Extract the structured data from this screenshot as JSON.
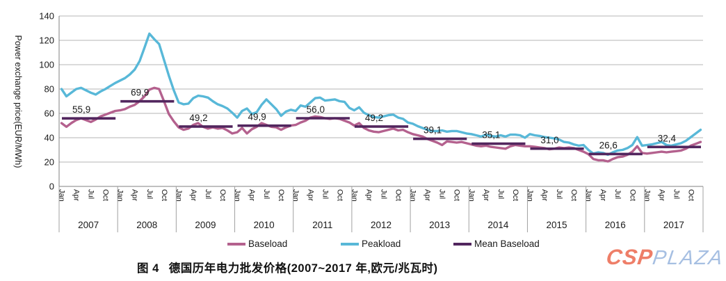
{
  "caption": {
    "figure_label": "图 4",
    "title": "德国历年电力批发价格(2007~2017 年,欧元/兆瓦时)"
  },
  "logo": {
    "csp_text": "CSP",
    "plaza_text": "PLAZA",
    "csp_color": "#ee7e68",
    "plaza_color": "#a6bfe2"
  },
  "colors": {
    "baseload": "#b4618e",
    "peakload": "#58b8d8",
    "mean_baseload": "#52265e",
    "gridline": "#b5b5b5",
    "axis": "#808080",
    "separator": "#a0a0a0"
  },
  "chart_data": {
    "type": "line",
    "ylabel": "Power exchange price(EUR/MWh)",
    "ylim": [
      0,
      140
    ],
    "y_ticks": [
      0,
      20,
      40,
      60,
      80,
      100,
      120,
      140
    ],
    "grid": "horizontal",
    "legend_position": "bottom",
    "years": [
      2007,
      2008,
      2009,
      2010,
      2011,
      2012,
      2013,
      2014,
      2015,
      2016,
      2017
    ],
    "month_tick_labels": [
      "Jan",
      "Apr",
      "Jul",
      "Oct"
    ],
    "month_tick_indices": [
      0,
      3,
      6,
      9
    ],
    "series": [
      {
        "name": "Baseload",
        "color": "#b4618e",
        "monthly_values": [
          52,
          49,
          52,
          54.5,
          56,
          54.5,
          53,
          55,
          57.5,
          59,
          60.5,
          62,
          62.5,
          63.5,
          65.5,
          67,
          70,
          74,
          79.5,
          81,
          80,
          70,
          59.5,
          53.5,
          48.5,
          46.5,
          47.5,
          50.5,
          52,
          49,
          47.5,
          48.5,
          47.5,
          48,
          46,
          43.5,
          44.5,
          48,
          43.5,
          47,
          49,
          52,
          50.5,
          49,
          48.5,
          46.5,
          48.5,
          50,
          50.5,
          52.5,
          54,
          56.5,
          57.5,
          57,
          56,
          55.5,
          56,
          55.5,
          54,
          52.5,
          50,
          52,
          48,
          46,
          45,
          44.5,
          45.5,
          46.5,
          47.5,
          46,
          46.5,
          44.5,
          43,
          42,
          41,
          39,
          37.5,
          36,
          34,
          37,
          36.5,
          36,
          36.5,
          35.5,
          34.5,
          33.5,
          33,
          33.5,
          32.5,
          32,
          31.5,
          31,
          33,
          34,
          33.5,
          33,
          33,
          32.5,
          32,
          31.5,
          30.5,
          31,
          32,
          31.5,
          32,
          31.5,
          30,
          28.5,
          26.5,
          22.5,
          21.5,
          21.5,
          20.5,
          22.5,
          24,
          24.5,
          26,
          28.5,
          33,
          27.5,
          27,
          27.5,
          28,
          28.5,
          28,
          28.5,
          29,
          29.5,
          31,
          33.5,
          35,
          36.5
        ]
      },
      {
        "name": "Peakload",
        "color": "#58b8d8",
        "monthly_values": [
          80,
          74,
          77,
          80,
          81,
          79,
          77,
          75.5,
          78,
          80,
          82.5,
          85,
          87,
          89,
          92,
          96,
          103,
          114,
          125.5,
          121,
          117,
          104,
          91,
          79,
          69,
          67.5,
          68,
          72.5,
          74.5,
          74,
          73,
          70,
          67.5,
          66,
          64,
          60.5,
          56.5,
          62,
          64,
          59.5,
          61,
          67,
          71.5,
          67.5,
          63.5,
          58,
          61.5,
          63,
          62,
          66.5,
          65.5,
          69,
          72.5,
          73,
          70.5,
          71,
          71.5,
          70,
          69.5,
          64.5,
          62.5,
          65,
          60.5,
          58.5,
          57,
          56.5,
          57.5,
          58.5,
          59,
          56.5,
          55.5,
          52.5,
          51.5,
          49.5,
          48,
          46.5,
          45.5,
          45.5,
          46,
          45,
          45.5,
          45.5,
          44.5,
          43.5,
          43,
          42,
          41,
          42.5,
          41.5,
          41,
          42,
          41,
          42.5,
          42.5,
          42,
          40,
          43,
          42,
          41.5,
          40.5,
          40,
          39.5,
          38.5,
          36.5,
          36,
          34.5,
          33.5,
          34,
          30,
          27,
          28,
          27.5,
          26,
          28,
          29.5,
          30,
          31.5,
          34,
          40.5,
          33.5,
          34,
          34.5,
          35.5,
          36.5,
          34,
          33.5,
          34.5,
          35.5,
          37.5,
          40.5,
          43.5,
          46.5
        ]
      },
      {
        "name": "Mean Baseload",
        "color": "#52265e",
        "annual_values": [
          55.9,
          69.9,
          49.2,
          49.9,
          56.0,
          49.2,
          39.1,
          35.1,
          31.0,
          26.6,
          32.4
        ],
        "annotation_labels": [
          "55,9",
          "69,9",
          "49,2",
          "49,9",
          "56,0",
          "49,2",
          "39,1",
          "35,1",
          "31,0",
          "26,6",
          "32,4"
        ]
      }
    ]
  }
}
